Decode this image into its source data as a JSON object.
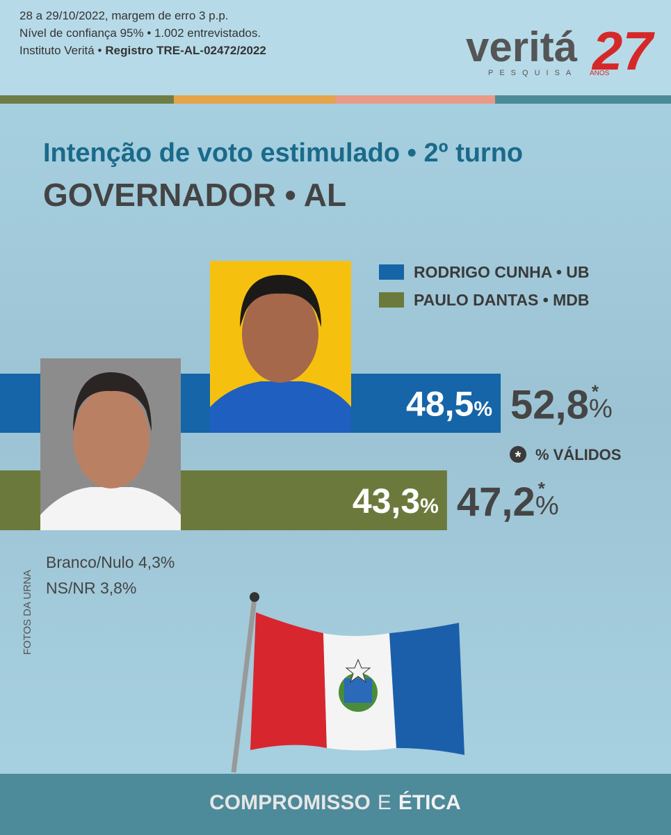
{
  "header": {
    "lines": [
      "28 a 29/10/2022, margem de erro 3 p.p.",
      "Nível de confiança 95% • 1.002 entrevistados."
    ],
    "institute": "Instituto Veritá •",
    "registry": "Registro TRE-AL-02472/2022"
  },
  "logo": {
    "name": "veritá",
    "sub": "PESQUISA",
    "years": "27",
    "years_label": "ANOS"
  },
  "chart_data": {
    "type": "bar",
    "orientation": "horizontal",
    "title": "Intenção de voto estimulado • 2º turno",
    "subtitle": "GOVERNADOR • AL",
    "categories": [
      "RODRIGO CUNHA • UB",
      "PAULO DANTAS • MDB"
    ],
    "colors": [
      "#1565a8",
      "#6b7a3c"
    ],
    "values": [
      48.5,
      43.3
    ],
    "value_labels": [
      "48,5",
      "43,3"
    ],
    "valid_values": [
      52.8,
      47.2
    ],
    "valid_value_labels": [
      "52,8",
      "47,2"
    ],
    "unit": "%",
    "valid_marker": "*",
    "valid_note": "% VÁLIDOS",
    "xlim": [
      0,
      65
    ]
  },
  "notes": [
    "Branco/Nulo 4,3%",
    "NS/NR 3,8%"
  ],
  "photo_credit": "FOTOS DA URNA",
  "footer": {
    "part1": "COMPROMISSO",
    "middle": "E",
    "part2": "ÉTICA"
  }
}
